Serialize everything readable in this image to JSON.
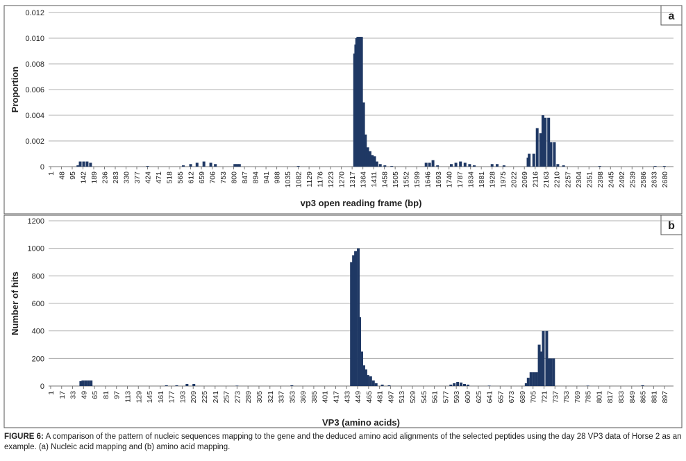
{
  "chart_data": [
    {
      "type": "bar",
      "panel_label": "a",
      "ylabel": "Proportion",
      "xlabel": "vp3 open reading frame (bp)",
      "color": "#1f3864",
      "grid": true,
      "x": [
        120,
        130,
        145,
        160,
        175,
        424,
        580,
        612,
        640,
        670,
        700,
        720,
        805,
        815,
        825,
        1082,
        1328,
        1333,
        1337,
        1342,
        1346,
        1352,
        1358,
        1367,
        1375,
        1385,
        1395,
        1405,
        1415,
        1425,
        1440,
        1460,
        1490,
        1640,
        1655,
        1670,
        1690,
        1750,
        1770,
        1790,
        1810,
        1830,
        1850,
        1928,
        1950,
        1980,
        2085,
        2090,
        2110,
        2125,
        2140,
        2150,
        2160,
        2175,
        2185,
        2200,
        2215,
        2240,
        2398,
        2640,
        2680
      ],
      "values": [
        0.0001,
        0.0004,
        0.0004,
        0.0004,
        0.0003,
        5e-05,
        0.0001,
        0.0002,
        0.0003,
        0.0004,
        0.0003,
        0.0002,
        0.0002,
        0.0002,
        0.0002,
        5e-05,
        0.0088,
        0.0095,
        0.01,
        0.0101,
        0.0101,
        0.0101,
        0.0101,
        0.005,
        0.0025,
        0.0015,
        0.0012,
        0.0009,
        0.0008,
        0.0004,
        0.0002,
        0.0001,
        5e-05,
        0.0003,
        0.0003,
        0.0005,
        0.0001,
        0.0002,
        0.0003,
        0.0004,
        0.0003,
        0.0002,
        0.0001,
        0.0002,
        0.0002,
        0.0001,
        0.0007,
        0.001,
        0.001,
        0.003,
        0.0026,
        0.004,
        0.0038,
        0.0038,
        0.0019,
        0.0019,
        0.0002,
        0.0001,
        5e-05,
        5e-05,
        5e-05
      ],
      "xlim": [
        -8,
        2720
      ],
      "xticks": [
        1,
        48,
        95,
        142,
        189,
        236,
        283,
        330,
        377,
        424,
        471,
        518,
        565,
        612,
        659,
        706,
        753,
        800,
        847,
        894,
        941,
        988,
        1035,
        1082,
        1129,
        1176,
        1223,
        1270,
        1317,
        1364,
        1411,
        1458,
        1505,
        1552,
        1599,
        1646,
        1693,
        1740,
        1787,
        1834,
        1881,
        1928,
        1975,
        2022,
        2069,
        2116,
        2163,
        2210,
        2257,
        2304,
        2351,
        2398,
        2445,
        2492,
        2539,
        2586,
        2633,
        2680
      ],
      "ylim": [
        0,
        0.012
      ],
      "yticks": [
        0,
        0.002,
        0.004,
        0.006,
        0.008,
        {
          "value": 0.01,
          "label": "0.010"
        },
        0.012
      ]
    },
    {
      "type": "bar",
      "panel_label": "b",
      "ylabel": "Number of hits",
      "xlabel": "VP3 (amino acids)",
      "color": "#1f3864",
      "grid": true,
      "x": [
        45,
        48,
        52,
        56,
        60,
        170,
        185,
        200,
        210,
        273,
        353,
        440,
        443,
        446,
        450,
        452,
        455,
        458,
        461,
        464,
        468,
        472,
        476,
        485,
        495,
        585,
        590,
        595,
        600,
        605,
        610,
        641,
        695,
        698,
        702,
        706,
        710,
        714,
        716,
        718,
        720,
        725,
        728,
        731,
        735,
        785,
        865
      ],
      "values": [
        35,
        40,
        40,
        40,
        40,
        5,
        5,
        15,
        15,
        3,
        5,
        900,
        950,
        980,
        1000,
        500,
        250,
        150,
        120,
        80,
        70,
        40,
        20,
        10,
        5,
        10,
        20,
        30,
        25,
        15,
        10,
        3,
        20,
        60,
        100,
        100,
        100,
        300,
        250,
        200,
        400,
        400,
        200,
        200,
        200,
        3,
        5
      ],
      "xlim": [
        -2,
        910
      ],
      "xticks": [
        1,
        17,
        33,
        49,
        65,
        81,
        97,
        113,
        129,
        145,
        161,
        177,
        193,
        209,
        225,
        241,
        257,
        273,
        289,
        305,
        321,
        337,
        353,
        369,
        385,
        401,
        417,
        433,
        449,
        465,
        481,
        497,
        513,
        529,
        545,
        561,
        577,
        593,
        609,
        625,
        641,
        657,
        673,
        689,
        705,
        721,
        737,
        753,
        769,
        785,
        801,
        817,
        833,
        849,
        865,
        881,
        897
      ],
      "ylim": [
        0,
        1200
      ],
      "yticks": [
        0,
        200,
        400,
        600,
        800,
        1000,
        1200
      ]
    }
  ],
  "caption": {
    "label": "FIGURE 6:",
    "text": "A comparison of the pattern of nucleic sequences mapping to the gene and the deduced amino acid alignments of the selected peptides using the day 28 VP3 data of Horse 2 as an example. (a) Nucleic acid mapping and (b) amino acid mapping."
  }
}
